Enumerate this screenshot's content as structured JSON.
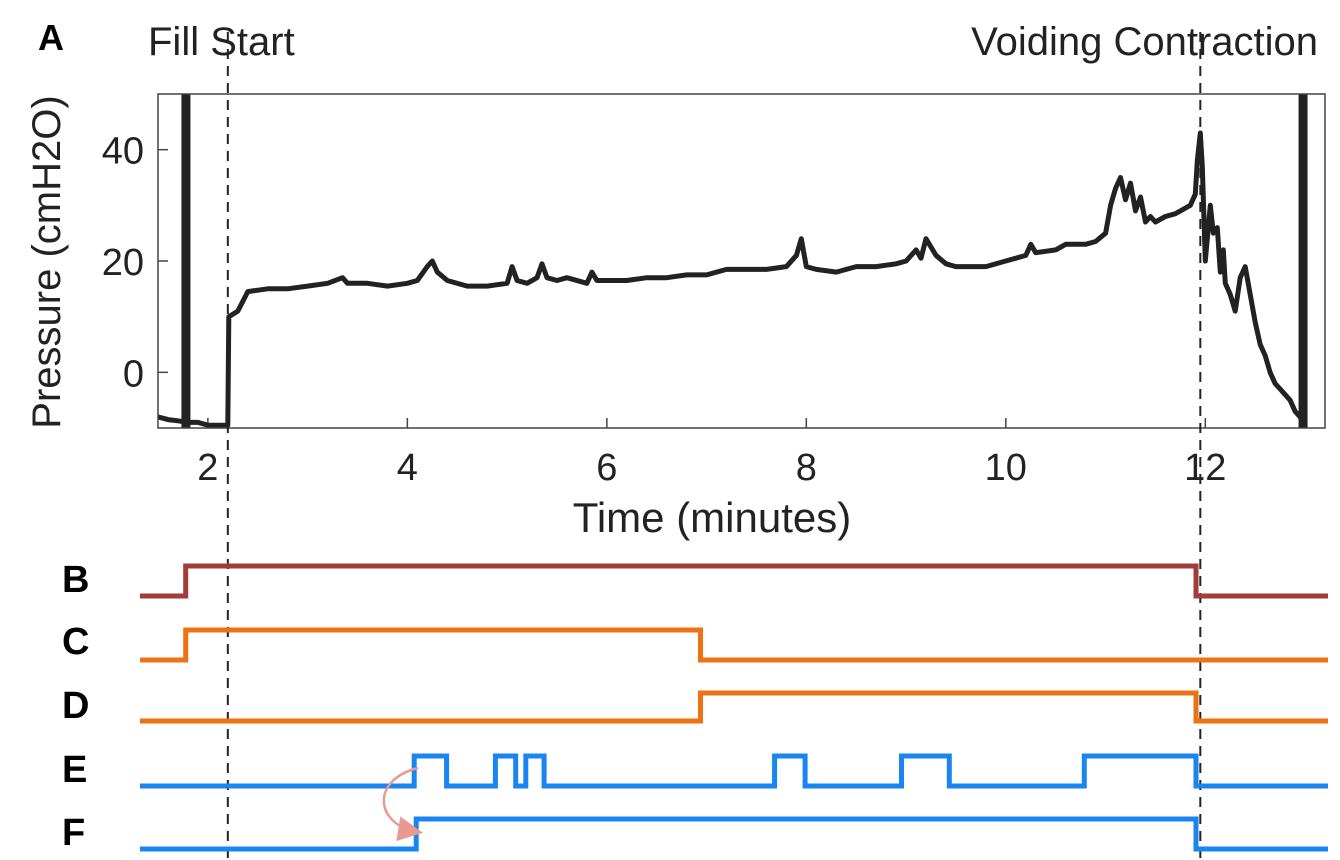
{
  "panel_labels": {
    "a": "A",
    "b": "B",
    "c": "C",
    "d": "D",
    "e": "E",
    "f": "F"
  },
  "annotations": {
    "fill_start": "Fill Start",
    "voiding_contraction": "Voiding Contraction"
  },
  "colors": {
    "trace": "#222222",
    "B": "#a33b36",
    "C": "#ee7214",
    "D": "#ee7214",
    "E": "#1a84f0",
    "F": "#1a84f0",
    "arrow": "#e89a90"
  },
  "chart_data": [
    {
      "type": "line",
      "title": "",
      "xlabel": "Time (minutes)",
      "ylabel": "Pressure (cmH2O)",
      "xlim": [
        1.5,
        13.2
      ],
      "ylim": [
        -10,
        50
      ],
      "xticks": [
        2,
        4,
        6,
        8,
        10,
        12
      ],
      "yticks": [
        0,
        20,
        40
      ],
      "markers": {
        "fill_start_x": 2.2,
        "voiding_contraction_x": 11.95,
        "bar_left_x": 1.78,
        "bar_right_x": 12.98
      },
      "series": [
        {
          "x": [
            1.5,
            1.6,
            1.7,
            1.8,
            1.9,
            2.0,
            2.1,
            2.2,
            2.21,
            2.3,
            2.4,
            2.6,
            2.8,
            3.0,
            3.2,
            3.35,
            3.4,
            3.6,
            3.8,
            4.0,
            4.1,
            4.2,
            4.25,
            4.3,
            4.4,
            4.6,
            4.8,
            5.0,
            5.05,
            5.1,
            5.2,
            5.3,
            5.35,
            5.4,
            5.5,
            5.6,
            5.8,
            5.85,
            5.9,
            6.0,
            6.2,
            6.4,
            6.6,
            6.8,
            7.0,
            7.2,
            7.4,
            7.6,
            7.8,
            7.9,
            7.95,
            8.0,
            8.1,
            8.3,
            8.5,
            8.7,
            8.9,
            9.0,
            9.1,
            9.15,
            9.2,
            9.3,
            9.4,
            9.5,
            9.6,
            9.8,
            10.0,
            10.2,
            10.25,
            10.3,
            10.5,
            10.6,
            10.7,
            10.8,
            10.9,
            11.0,
            11.05,
            11.1,
            11.15,
            11.2,
            11.25,
            11.3,
            11.35,
            11.4,
            11.45,
            11.5,
            11.6,
            11.7,
            11.75,
            11.8,
            11.85,
            11.9,
            11.92,
            11.95,
            11.97,
            12.0,
            12.05,
            12.08,
            12.12,
            12.15,
            12.18,
            12.2,
            12.25,
            12.3,
            12.35,
            12.4,
            12.45,
            12.5,
            12.55,
            12.6,
            12.65,
            12.7,
            12.75,
            12.8,
            12.85,
            12.9,
            12.95,
            13.0
          ],
          "y": [
            -8,
            -8.5,
            -8.7,
            -9,
            -9,
            -9.5,
            -9.5,
            -9.5,
            10,
            11,
            14.5,
            15,
            15,
            15.5,
            16,
            17,
            16,
            16,
            15.5,
            16,
            16.5,
            19,
            20,
            18,
            16.5,
            15.5,
            15.5,
            16,
            19,
            16.5,
            16,
            17,
            19.5,
            17,
            16.5,
            17,
            16,
            18,
            16.5,
            16.5,
            16.5,
            17,
            17,
            17.5,
            17.5,
            18.5,
            18.5,
            18.5,
            19,
            21,
            24,
            19,
            18.5,
            18,
            19,
            19,
            19.5,
            20,
            22,
            20.5,
            24,
            21,
            19.5,
            19,
            19,
            19,
            20,
            21,
            23,
            21.5,
            22,
            23,
            23,
            23,
            23.5,
            25,
            30,
            33,
            35,
            31,
            34,
            29,
            31.5,
            27,
            28,
            27,
            28,
            28.5,
            29,
            29.5,
            30,
            32,
            38,
            43,
            37,
            20,
            30,
            25,
            26,
            18,
            22,
            16,
            14,
            11,
            17,
            19,
            14,
            9,
            5,
            3,
            0,
            -2,
            -3,
            -4,
            -5,
            -7,
            -8,
            -10
          ]
        }
      ]
    },
    {
      "type": "line",
      "title": "",
      "xlabel": "",
      "ylabel": "",
      "note": "digital state timelines B–F (same time axis as panel A)",
      "xlim": [
        1.5,
        13.2
      ],
      "series": [
        {
          "name": "B",
          "edges_x": [
            1.5,
            1.95,
            11.9,
            13.2
          ],
          "levels": [
            0,
            1,
            0
          ]
        },
        {
          "name": "C",
          "edges_x": [
            1.5,
            1.95,
            7.02,
            13.2
          ],
          "levels": [
            0,
            1,
            0
          ]
        },
        {
          "name": "D",
          "edges_x": [
            1.5,
            7.02,
            11.9,
            13.2
          ],
          "levels": [
            0,
            1,
            0
          ]
        },
        {
          "name": "E",
          "edges_x": [
            1.5,
            4.2,
            4.52,
            5.0,
            5.2,
            5.3,
            5.48,
            7.75,
            8.05,
            9.0,
            9.47,
            10.8,
            11.9,
            13.2
          ],
          "levels": [
            0,
            1,
            0,
            1,
            0,
            1,
            0,
            1,
            0,
            1,
            0,
            1,
            0
          ]
        },
        {
          "name": "F",
          "edges_x": [
            1.5,
            4.22,
            11.9,
            13.2
          ],
          "levels": [
            0,
            1,
            0
          ]
        }
      ]
    }
  ]
}
